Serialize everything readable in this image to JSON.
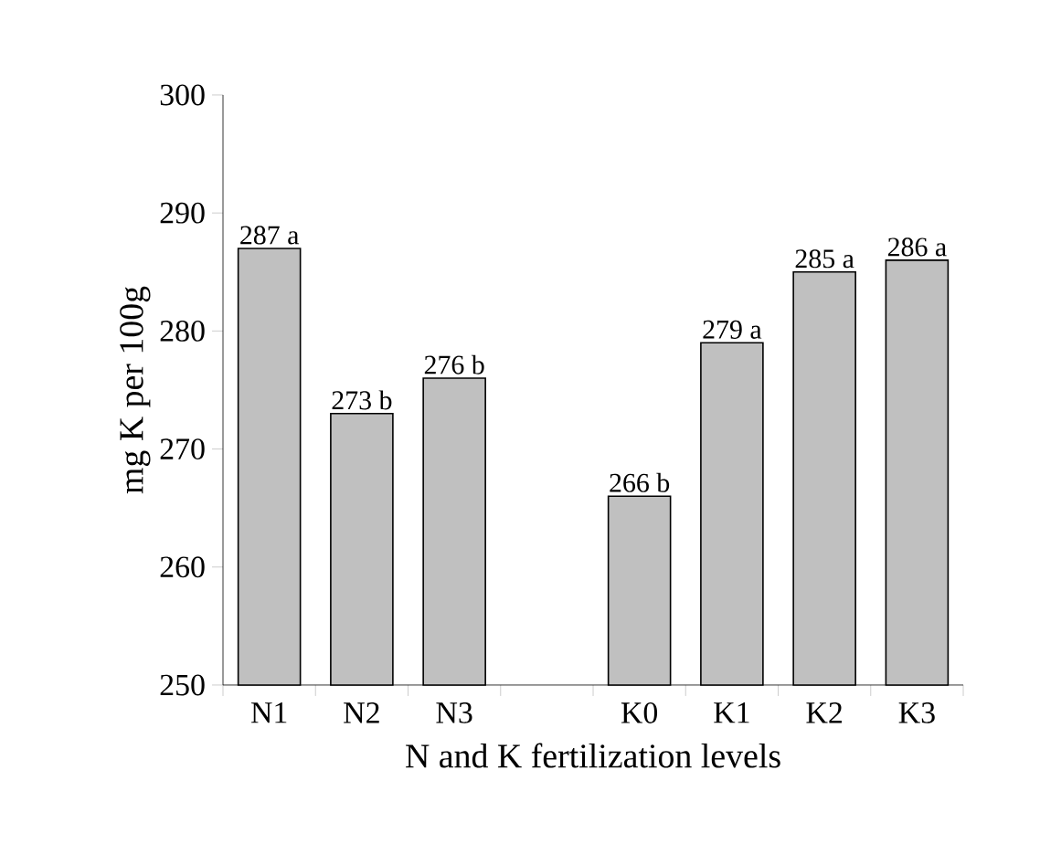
{
  "chart_data": {
    "type": "bar",
    "xlabel": "N and  K  fertilization levels",
    "ylabel": "mg K per 100g",
    "categories": [
      "N1",
      "N2",
      "N3",
      null,
      "K0",
      "K1",
      "K2",
      "K3"
    ],
    "values": [
      287,
      273,
      276,
      null,
      266,
      279,
      285,
      286
    ],
    "value_labels": [
      "287 a",
      "273 b",
      "276 b",
      null,
      "266 b",
      "279 a",
      "285 a",
      "286 a"
    ],
    "color": "#c0c0c0",
    "ylim": [
      250,
      300
    ],
    "yticks": [
      250,
      260,
      270,
      280,
      290,
      300
    ]
  }
}
